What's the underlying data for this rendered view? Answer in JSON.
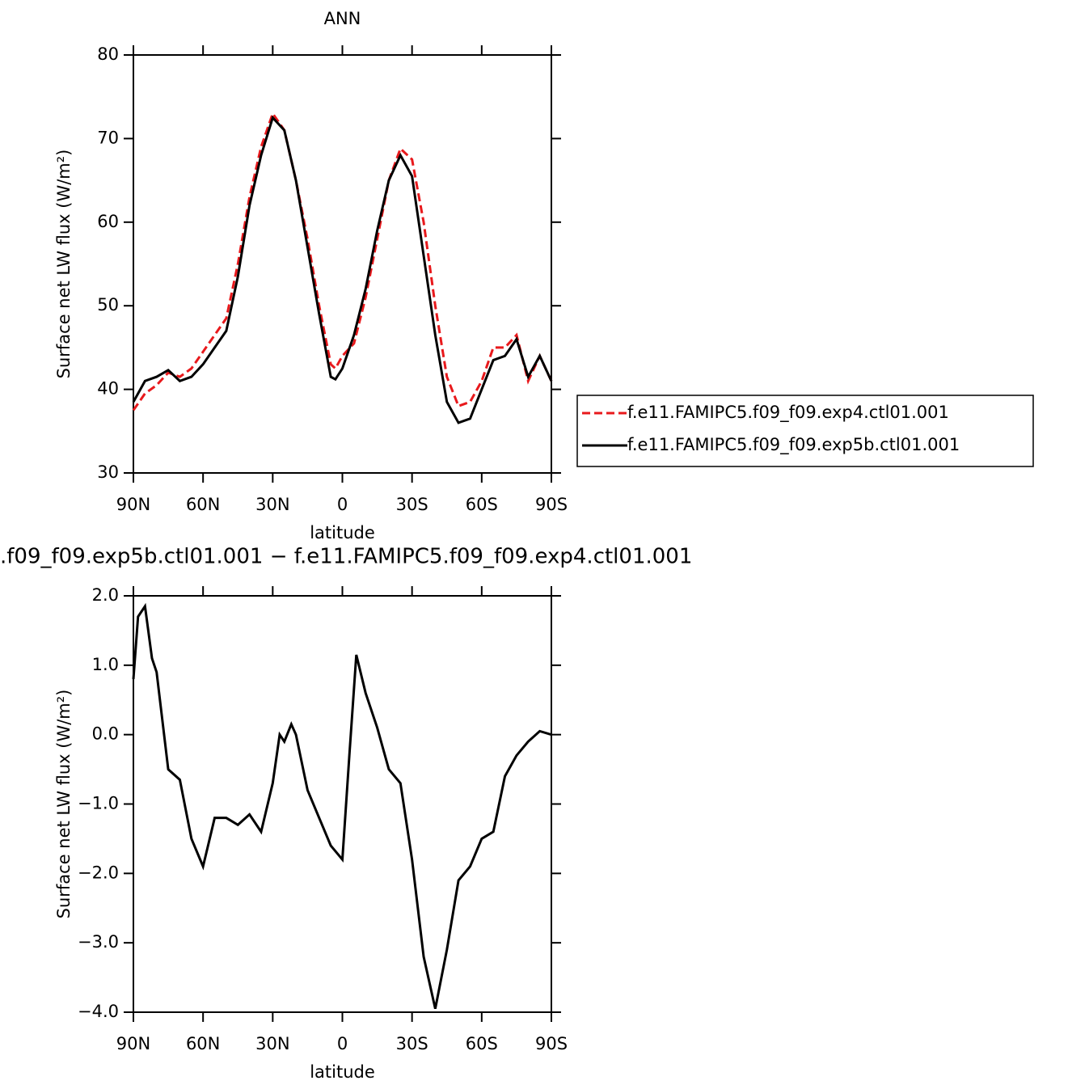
{
  "chart_data": [
    {
      "type": "line",
      "title": "ANN",
      "xlabel": "latitude",
      "ylabel": "Surface net LW flux (W/m²)",
      "x": [
        90,
        85,
        80,
        75,
        70,
        65,
        60,
        55,
        50,
        45,
        40,
        35,
        30,
        25,
        20,
        15,
        10,
        5,
        3,
        0,
        -5,
        -10,
        -15,
        -20,
        -25,
        -30,
        -35,
        -40,
        -45,
        -50,
        -55,
        -60,
        -65,
        -70,
        -75,
        -80,
        -85,
        -90
      ],
      "series": [
        {
          "name": "f.e11.FAMIPC5.f09_f09.exp4.ctl01.001",
          "color": "#e8191c",
          "dash": true,
          "values": [
            37.5,
            39.5,
            40.5,
            42,
            41.5,
            42.5,
            44.5,
            46.5,
            48.5,
            55,
            63,
            69,
            73,
            71,
            65,
            58,
            50,
            43,
            42.5,
            44,
            45.5,
            51,
            58,
            65,
            68.8,
            67.5,
            60,
            50,
            41.5,
            38,
            38.5,
            41,
            45,
            45,
            46.5,
            41,
            44,
            41
          ]
        },
        {
          "name": "f.e11.FAMIPC5.f09_f09.exp5b.ctl01.001",
          "color": "#000000",
          "dash": false,
          "values": [
            38.5,
            41,
            41.5,
            42.3,
            41,
            41.5,
            43,
            45,
            47,
            53.5,
            62,
            68,
            72.5,
            71,
            65,
            57,
            49,
            41.5,
            41.2,
            42.5,
            46.5,
            52,
            59,
            65,
            68,
            65.5,
            56,
            46.5,
            38.5,
            36,
            36.5,
            40,
            43.5,
            44,
            46,
            41.5,
            44,
            41
          ]
        }
      ],
      "xlim": [
        90,
        -90
      ],
      "xticks": [
        {
          "value": 90,
          "label": "90N"
        },
        {
          "value": 60,
          "label": "60N"
        },
        {
          "value": 30,
          "label": "30N"
        },
        0,
        {
          "value": -30,
          "label": "30S"
        },
        {
          "value": -60,
          "label": "60S"
        },
        {
          "value": -90,
          "label": "90S"
        }
      ],
      "ylim": [
        30,
        80
      ],
      "yticks": [
        30,
        40,
        50,
        60,
        70,
        80
      ],
      "legend": "right"
    },
    {
      "type": "line",
      "title": ".f09_f09.exp5b.ctl01.001 − f.e11.FAMIPC5.f09_f09.exp4.ctl01.001",
      "xlabel": "latitude",
      "ylabel": "Surface net LW flux (W/m²)",
      "x": [
        90,
        88,
        85,
        82,
        80,
        75,
        70,
        65,
        60,
        55,
        50,
        45,
        40,
        35,
        30,
        27,
        25,
        22,
        20,
        15,
        10,
        5,
        0,
        -3,
        -6,
        -10,
        -15,
        -20,
        -25,
        -30,
        -35,
        -40,
        -45,
        -50,
        -55,
        -60,
        -65,
        -70,
        -75,
        -80,
        -85,
        -90
      ],
      "series": [
        {
          "color": "#000000",
          "dash": false,
          "values": [
            0.8,
            1.7,
            1.85,
            1.1,
            0.9,
            -0.5,
            -0.65,
            -1.5,
            -1.9,
            -1.2,
            -1.2,
            -1.3,
            -1.15,
            -1.4,
            -0.7,
            0.0,
            -0.1,
            0.15,
            0.0,
            -0.8,
            -1.2,
            -1.6,
            -1.8,
            -0.3,
            1.15,
            0.6,
            0.1,
            -0.5,
            -0.7,
            -1.8,
            -3.2,
            -3.95,
            -3.1,
            -2.1,
            -1.9,
            -1.5,
            -1.4,
            -0.6,
            -0.3,
            -0.1,
            0.05,
            0.0
          ]
        }
      ],
      "xlim": [
        90,
        -90
      ],
      "xticks": [
        {
          "value": 90,
          "label": "90N"
        },
        {
          "value": 60,
          "label": "60N"
        },
        {
          "value": 30,
          "label": "30N"
        },
        0,
        {
          "value": -30,
          "label": "30S"
        },
        {
          "value": -60,
          "label": "60S"
        },
        {
          "value": -90,
          "label": "90S"
        }
      ],
      "ylim": [
        -4,
        2
      ],
      "yticks": [
        {
          "value": -4,
          "label": "−4.0"
        },
        {
          "value": -3,
          "label": "−3.0"
        },
        {
          "value": -2,
          "label": "−2.0"
        },
        {
          "value": -1,
          "label": "−1.0"
        },
        {
          "value": 0,
          "label": "0.0"
        },
        {
          "value": 1,
          "label": "1.0"
        },
        {
          "value": 2,
          "label": "2.0"
        }
      ]
    }
  ]
}
